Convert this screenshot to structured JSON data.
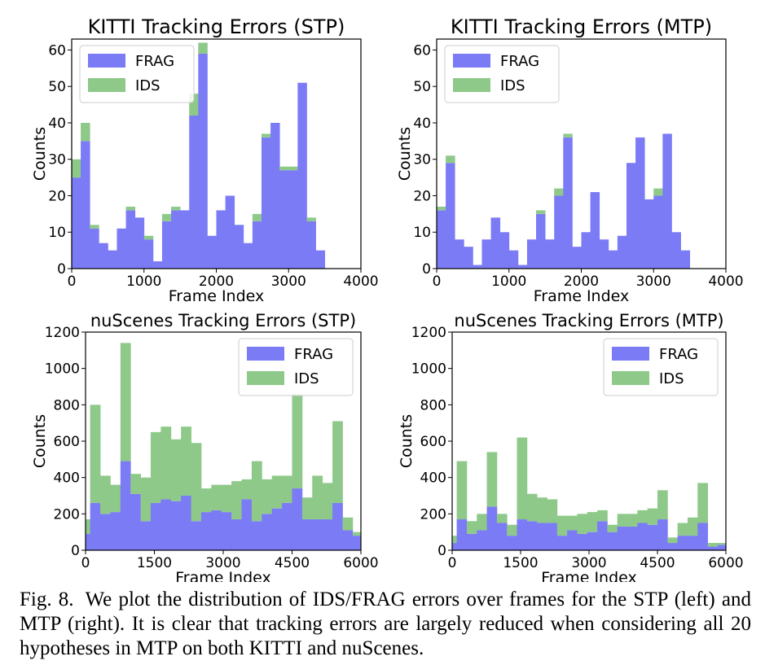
{
  "colors": {
    "frag": "#7b7bf5",
    "ids": "#8ec98a"
  },
  "caption": {
    "label": "Fig. 8.",
    "text": "We plot the distribution of IDS/FRAG errors over frames for the STP (left) and MTP (right). It is clear that tracking errors are largely reduced when considering all 20 hypotheses in MTP on both KITTI and nuScenes."
  },
  "chart_data": [
    {
      "type": "bar",
      "stacked": true,
      "title": "KITTI Tracking Errors (STP)",
      "xlabel": "Frame Index",
      "ylabel": "Counts",
      "xlim": [
        0,
        4000
      ],
      "ylim": [
        0,
        63
      ],
      "xticks": [
        0,
        1000,
        2000,
        3000,
        4000
      ],
      "yticks": [
        0,
        10,
        20,
        30,
        40,
        50,
        60
      ],
      "legend_position": "top-left",
      "bin_start": 0,
      "bin_width": 125,
      "series": [
        {
          "name": "FRAG",
          "values": [
            25,
            35,
            11,
            7,
            5,
            11,
            16,
            14,
            8,
            2,
            13,
            16,
            16,
            42,
            59,
            9,
            16,
            20,
            12,
            7,
            13,
            36,
            40,
            27,
            27,
            51,
            13,
            5
          ]
        },
        {
          "name": "IDS",
          "values": [
            5,
            5,
            1,
            0,
            0,
            0,
            1,
            0,
            1,
            0,
            2,
            1,
            0,
            6,
            3,
            0,
            0,
            0,
            0,
            0,
            2,
            1,
            0,
            1,
            1,
            0,
            1,
            0
          ]
        }
      ]
    },
    {
      "type": "bar",
      "stacked": true,
      "title": "KITTI Tracking Errors (MTP)",
      "xlabel": "Frame Index",
      "ylabel": "Counts",
      "xlim": [
        0,
        4000
      ],
      "ylim": [
        0,
        63
      ],
      "xticks": [
        0,
        1000,
        2000,
        3000,
        4000
      ],
      "yticks": [
        0,
        10,
        20,
        30,
        40,
        50,
        60
      ],
      "legend_position": "top-left",
      "bin_start": 0,
      "bin_width": 125,
      "series": [
        {
          "name": "FRAG",
          "values": [
            16,
            29,
            8,
            6,
            1,
            8,
            14,
            10,
            5,
            1,
            8,
            15,
            8,
            20,
            36,
            6,
            10,
            21,
            8,
            5,
            9,
            29,
            36,
            19,
            20,
            37,
            10,
            5
          ]
        },
        {
          "name": "IDS",
          "values": [
            1,
            2,
            0,
            0,
            0,
            0,
            0,
            0,
            0,
            0,
            0,
            1,
            0,
            2,
            1,
            0,
            0,
            0,
            0,
            0,
            0,
            0,
            0,
            0,
            2,
            0,
            0,
            0
          ]
        }
      ]
    },
    {
      "type": "bar",
      "stacked": true,
      "title": "nuScenes Tracking Errors (STP)",
      "xlabel": "Frame Index",
      "ylabel": "Counts",
      "xlim": [
        0,
        6000
      ],
      "ylim": [
        0,
        1200
      ],
      "xticks": [
        0,
        1500,
        3000,
        4500,
        6000
      ],
      "yticks": [
        0,
        200,
        400,
        600,
        800,
        1000,
        1200
      ],
      "legend_position": "top-right",
      "bin_start": -120,
      "bin_width": 220,
      "series": [
        {
          "name": "FRAG",
          "values": [
            90,
            260,
            200,
            210,
            490,
            310,
            160,
            260,
            280,
            270,
            300,
            160,
            210,
            220,
            210,
            170,
            280,
            160,
            200,
            230,
            260,
            340,
            170,
            170,
            170,
            260,
            110,
            80,
            120
          ]
        },
        {
          "name": "IDS",
          "values": [
            80,
            540,
            210,
            150,
            650,
            110,
            240,
            390,
            400,
            340,
            380,
            430,
            130,
            140,
            150,
            210,
            110,
            330,
            190,
            180,
            150,
            520,
            120,
            240,
            200,
            450,
            70,
            20,
            90
          ]
        }
      ]
    },
    {
      "type": "bar",
      "stacked": true,
      "title": "nuScenes Tracking Errors (MTP)",
      "xlabel": "Frame Index",
      "ylabel": "Counts",
      "xlim": [
        0,
        6000
      ],
      "ylim": [
        0,
        1200
      ],
      "xticks": [
        0,
        1500,
        3000,
        4500,
        6000
      ],
      "yticks": [
        0,
        200,
        400,
        600,
        800,
        1000,
        1200
      ],
      "legend_position": "top-right",
      "bin_start": -120,
      "bin_width": 220,
      "series": [
        {
          "name": "FRAG",
          "values": [
            40,
            170,
            90,
            110,
            240,
            150,
            80,
            170,
            160,
            150,
            150,
            80,
            110,
            90,
            100,
            160,
            100,
            130,
            130,
            150,
            140,
            170,
            40,
            80,
            80,
            150,
            20,
            30,
            50
          ]
        },
        {
          "name": "IDS",
          "values": [
            40,
            320,
            70,
            90,
            300,
            50,
            60,
            450,
            150,
            140,
            130,
            110,
            80,
            110,
            110,
            60,
            40,
            70,
            70,
            70,
            90,
            160,
            30,
            70,
            100,
            220,
            20,
            10,
            10
          ]
        }
      ]
    }
  ]
}
